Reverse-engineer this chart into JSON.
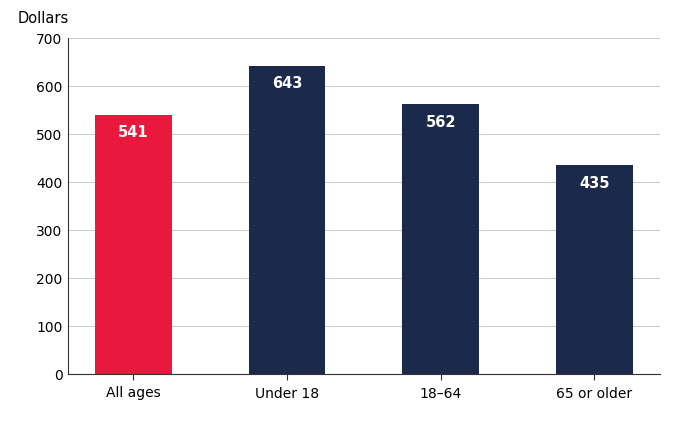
{
  "categories": [
    "All ages",
    "Under 18",
    "18–64",
    "65 or older"
  ],
  "values": [
    541,
    643,
    562,
    435
  ],
  "bar_colors": [
    "#e8193c",
    "#1b2a4a",
    "#1b2a4a",
    "#1b2a4a"
  ],
  "label_color": "white",
  "ylabel": "Dollars",
  "ylim": [
    0,
    700
  ],
  "yticks": [
    0,
    100,
    200,
    300,
    400,
    500,
    600,
    700
  ],
  "bar_width": 0.5,
  "label_fontsize": 10.5,
  "ylabel_fontsize": 10.5,
  "tick_fontsize": 10,
  "background_color": "#ffffff",
  "grid_color": "#cccccc",
  "spine_color": "#333333"
}
